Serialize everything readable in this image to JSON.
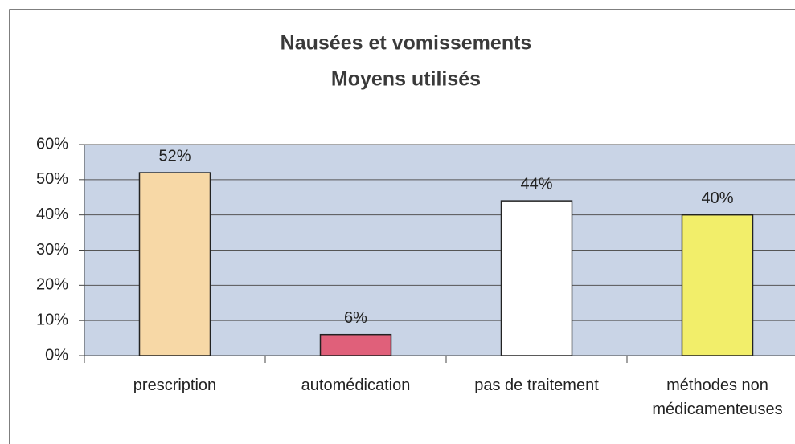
{
  "chart_data": {
    "type": "bar",
    "title": "Nausées et vomissements",
    "subtitle": "Moyens utilisés",
    "categories": [
      "prescription",
      "automédication",
      "pas de traitement",
      "méthodes non médicamenteuses"
    ],
    "values": [
      52,
      6,
      44,
      40
    ],
    "value_labels": [
      "52%",
      "6%",
      "44%",
      "40%"
    ],
    "colors": [
      "#f7d8a6",
      "#e0607a",
      "#ffffff",
      "#f2ee6a"
    ],
    "ylim": [
      0,
      60
    ],
    "yticks": [
      {
        "value": 0,
        "label": "0%"
      },
      {
        "value": 10,
        "label": "10%"
      },
      {
        "value": 20,
        "label": "20%"
      },
      {
        "value": 30,
        "label": "30%"
      },
      {
        "value": 40,
        "label": "40%"
      },
      {
        "value": 50,
        "label": "50%"
      },
      {
        "value": 60,
        "label": "60%"
      }
    ],
    "grid": true
  }
}
